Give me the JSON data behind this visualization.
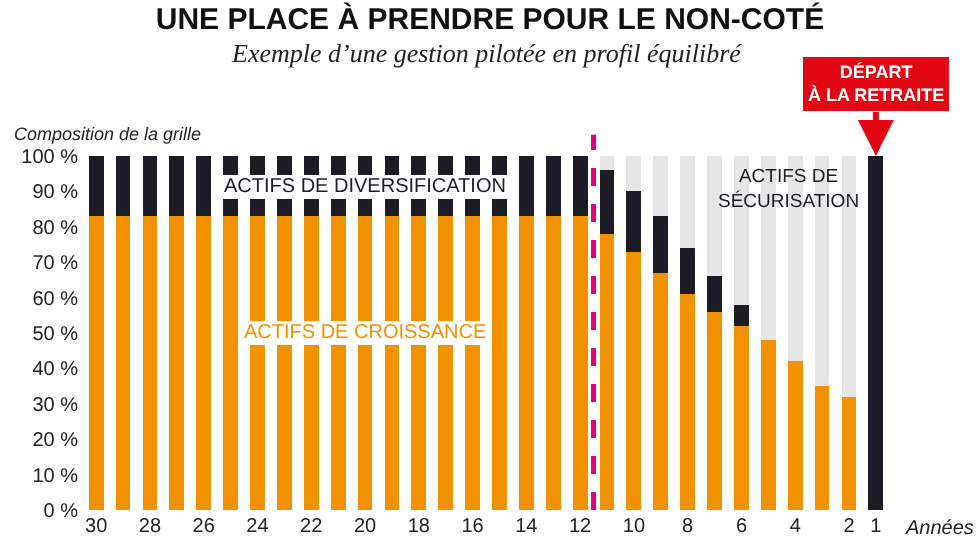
{
  "chart_data": {
    "type": "bar",
    "title": "UNE PLACE À PRENDRE POUR LE NON-COTÉ",
    "subtitle": "Exemple d’une gestion pilotée en profil équilibré",
    "ylabel": "Composition de la grille",
    "xlabel": "Années",
    "stacked": true,
    "legend": false,
    "x": [
      30,
      29,
      28,
      27,
      26,
      25,
      24,
      23,
      22,
      21,
      20,
      19,
      18,
      17,
      16,
      15,
      14,
      13,
      12,
      11,
      10,
      9,
      8,
      7,
      6,
      5,
      4,
      3,
      2,
      1
    ],
    "xlim": [
      30.6,
      0.4
    ],
    "xticks": [
      30,
      28,
      26,
      24,
      22,
      20,
      18,
      16,
      14,
      12,
      10,
      8,
      6,
      4,
      2,
      1
    ],
    "ylim": [
      0,
      100
    ],
    "yticks": [
      {
        "value": 0,
        "label": "0 %"
      },
      {
        "value": 10,
        "label": "10 %"
      },
      {
        "value": 20,
        "label": "20 %"
      },
      {
        "value": 30,
        "label": "30 %"
      },
      {
        "value": 40,
        "label": "40 %"
      },
      {
        "value": 50,
        "label": "50 %"
      },
      {
        "value": 60,
        "label": "60 %"
      },
      {
        "value": 70,
        "label": "70 %"
      },
      {
        "value": 80,
        "label": "80 %"
      },
      {
        "value": 90,
        "label": "90 %"
      },
      {
        "value": 100,
        "label": "100 %"
      }
    ],
    "series": [
      {
        "name": "ACTIFS DE CROISSANCE",
        "color": "#f39200",
        "values": [
          83,
          83,
          83,
          83,
          83,
          83,
          83,
          83,
          83,
          83,
          83,
          83,
          83,
          83,
          83,
          83,
          83,
          83,
          83,
          78,
          73,
          67,
          61,
          56,
          52,
          48,
          42,
          35,
          32,
          0
        ]
      },
      {
        "name": "ACTIFS DE DIVERSIFICATION",
        "color": "#1c1b26",
        "values": [
          17,
          17,
          17,
          17,
          17,
          17,
          17,
          17,
          17,
          17,
          17,
          17,
          17,
          17,
          17,
          17,
          17,
          17,
          17,
          18,
          17,
          16,
          13,
          10,
          6,
          0,
          0,
          0,
          0,
          100
        ]
      },
      {
        "name": "ACTIFS DE\nSÉCURISATION",
        "color": "#e6e6e6",
        "values": [
          0,
          0,
          0,
          0,
          0,
          0,
          0,
          0,
          0,
          0,
          0,
          0,
          0,
          0,
          0,
          0,
          0,
          0,
          0,
          4,
          10,
          17,
          26,
          34,
          42,
          52,
          58,
          65,
          68,
          0
        ]
      }
    ],
    "ref_lines": [
      {
        "axis": "x",
        "value": 11.5,
        "color": "#e5007d",
        "line_style": "dashed"
      }
    ],
    "annotations": [
      {
        "text": "DÉPART\nÀ LA RETRAITE",
        "x": 1,
        "y": 100
      }
    ]
  }
}
